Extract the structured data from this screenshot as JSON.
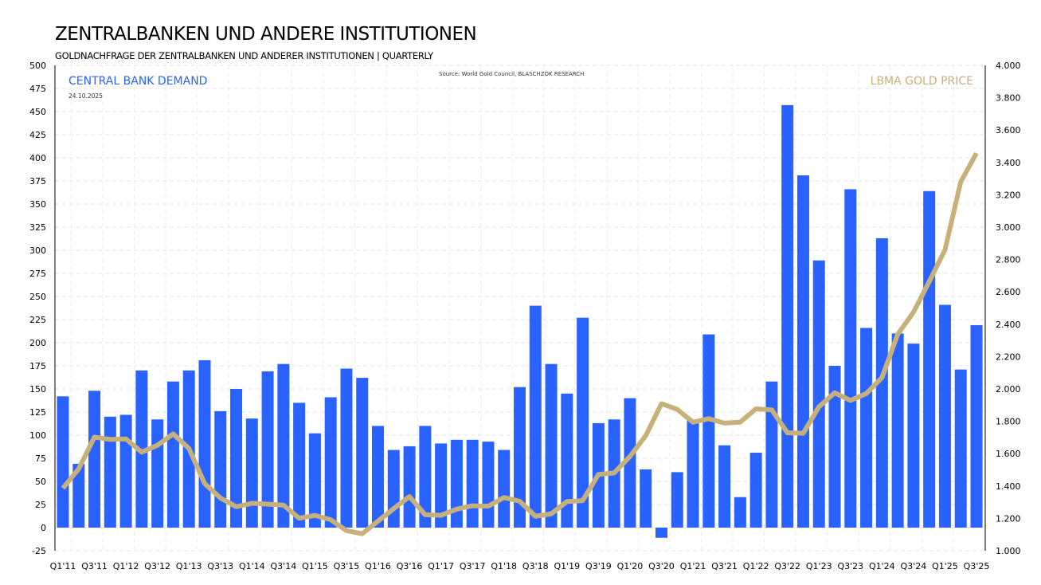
{
  "title": "ZENTRALBANKEN UND ANDERE INSTITUTIONEN",
  "subtitle": "GOLDNACHFRAGE DER ZENTRALBANKEN UND ANDERER INSTITUTIONEN | QUARTERLY",
  "chart_data": {
    "type": "bar",
    "source": "Source:  World  Gold Council,  BLASCHZOK  RESEARCH",
    "date": "24.10.2025",
    "left_axis": {
      "label": "CENTRAL BANK DEMAND",
      "ylim": [
        -25,
        500
      ],
      "ticks": [
        -25,
        0,
        25,
        50,
        75,
        100,
        125,
        150,
        175,
        200,
        225,
        250,
        275,
        300,
        325,
        350,
        375,
        400,
        425,
        450,
        475,
        500
      ]
    },
    "right_axis": {
      "label": "LBMA GOLD PRICE",
      "ylim": [
        1000,
        4000
      ],
      "ticks": [
        "1.000",
        "1.200",
        "1.400",
        "1.600",
        "1.800",
        "2.000",
        "2.200",
        "2.400",
        "2.600",
        "2.800",
        "3.000",
        "3.200",
        "3.400",
        "3.600",
        "3.800",
        "4.000"
      ]
    },
    "grid": true,
    "colors": {
      "bars": "#2962ff",
      "line": "#c8b07a",
      "left_label": "#2962ff",
      "right_label": "#c8b07a"
    },
    "categories": [
      "Q1'11",
      "Q2'11",
      "Q3'11",
      "Q4'11",
      "Q1'12",
      "Q2'12",
      "Q3'12",
      "Q4'12",
      "Q1'13",
      "Q2'13",
      "Q3'13",
      "Q4'13",
      "Q1'14",
      "Q2'14",
      "Q3'14",
      "Q4'14",
      "Q1'15",
      "Q2'15",
      "Q3'15",
      "Q4'15",
      "Q1'16",
      "Q2'16",
      "Q3'16",
      "Q4'16",
      "Q1'17",
      "Q2'17",
      "Q3'17",
      "Q4'17",
      "Q1'18",
      "Q2'18",
      "Q3'18",
      "Q4'18",
      "Q1'19",
      "Q2'19",
      "Q3'19",
      "Q4'19",
      "Q1'20",
      "Q2'20",
      "Q3'20",
      "Q4'20",
      "Q1'21",
      "Q2'21",
      "Q3'21",
      "Q4'21",
      "Q1'22",
      "Q2'22",
      "Q3'22",
      "Q4'22",
      "Q1'23",
      "Q2'23",
      "Q3'23",
      "Q4'23",
      "Q1'24",
      "Q2'24",
      "Q3'24",
      "Q4'24",
      "Q1'25",
      "Q2'25",
      "Q3'25"
    ],
    "series": [
      {
        "name": "CENTRAL BANK DEMAND",
        "type": "bar",
        "axis": "left",
        "values": [
          142,
          69,
          148,
          120,
          122,
          170,
          117,
          158,
          170,
          181,
          126,
          150,
          118,
          169,
          177,
          135,
          102,
          141,
          172,
          162,
          110,
          84,
          88,
          110,
          91,
          95,
          95,
          93,
          84,
          152,
          240,
          177,
          145,
          227,
          113,
          117,
          140,
          63,
          -11,
          60,
          116,
          209,
          89,
          33,
          81,
          158,
          457,
          381,
          289,
          175,
          366,
          216,
          313,
          210,
          199,
          364,
          241,
          171,
          219
        ]
      },
      {
        "name": "LBMA GOLD PRICE",
        "type": "line",
        "axis": "right",
        "values": [
          1386,
          1506,
          1702,
          1688,
          1691,
          1609,
          1652,
          1722,
          1632,
          1415,
          1326,
          1272,
          1293,
          1288,
          1282,
          1201,
          1218,
          1192,
          1124,
          1105,
          1183,
          1260,
          1335,
          1222,
          1219,
          1257,
          1278,
          1275,
          1329,
          1306,
          1213,
          1228,
          1304,
          1310,
          1472,
          1481,
          1583,
          1711,
          1909,
          1874,
          1794,
          1816,
          1789,
          1795,
          1877,
          1871,
          1729,
          1726,
          1890,
          1976,
          1929,
          1971,
          2070,
          2338,
          2474,
          2663,
          2860,
          3280,
          3457
        ]
      }
    ]
  }
}
